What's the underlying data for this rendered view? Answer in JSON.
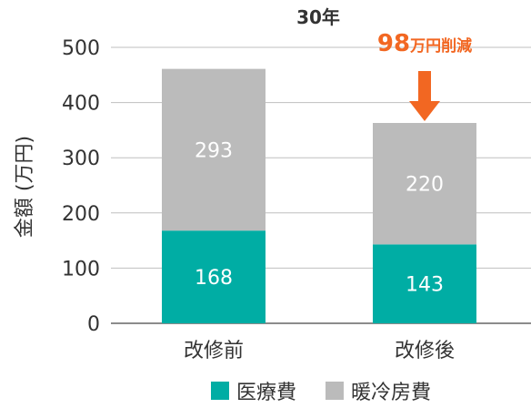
{
  "chart_data": {
    "type": "bar",
    "stacked": true,
    "title": "30年",
    "ylabel": "金額 (万円)",
    "xlabel": "",
    "ylim": [
      0,
      500
    ],
    "yticks": [
      "0",
      "100",
      "200",
      "300",
      "400",
      "500"
    ],
    "grid": true,
    "legend_position": "bottom",
    "categories": [
      "改修前",
      "改修後"
    ],
    "series": [
      {
        "name": "医療費",
        "values": [
          168,
          143
        ],
        "color": "#00ADA4"
      },
      {
        "name": "暖冷房費",
        "values": [
          293,
          220
        ],
        "color": "#BBBBBB"
      }
    ],
    "annotation": {
      "value": "98",
      "unit": "万円削減",
      "color": "#F26722",
      "target_category": "改修後",
      "icon": "down-arrow-icon"
    }
  }
}
